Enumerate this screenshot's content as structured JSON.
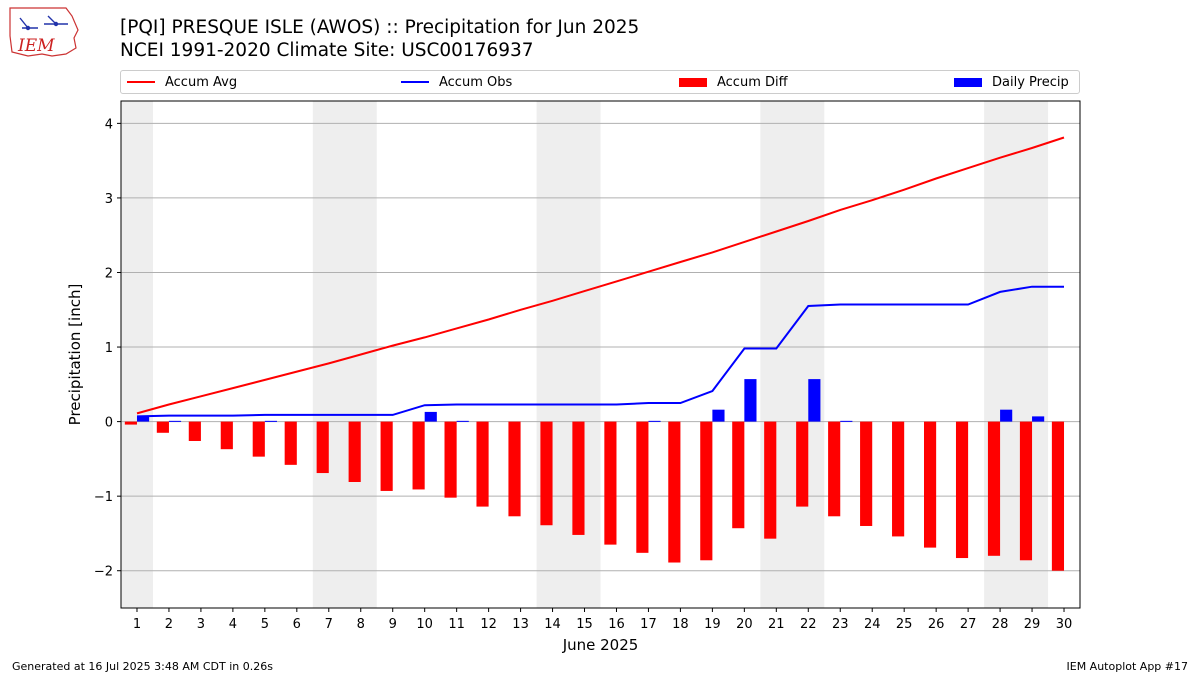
{
  "header": {
    "title_line1": "[PQI] PRESQUE ISLE (AWOS) :: Precipitation for Jun 2025",
    "title_line2": "NCEI 1991-2020 Climate Site: USC00176937"
  },
  "logo": {
    "text": "IEM"
  },
  "footer": {
    "left": "Generated at 16 Jul 2025 3:48 AM CDT in 0.26s",
    "right": "IEM Autoplot App #17"
  },
  "colors": {
    "accum_avg": "#ff0000",
    "accum_obs": "#0000ff",
    "accum_diff": "#ff0000",
    "daily_precip": "#0000ff",
    "weekend_band": "#eeeeee",
    "grid": "#b0b0b0"
  },
  "chart_data": {
    "type": "bar",
    "xlabel": "June 2025",
    "ylabel": "Precipitation [inch]",
    "xlim": [
      0.5,
      30.5
    ],
    "ylim": [
      -2.5,
      4.3
    ],
    "yticks": [
      4,
      3,
      2,
      1,
      0,
      -1,
      -2
    ],
    "ytick_labels": [
      "4",
      "3",
      "2",
      "1",
      "0",
      "−1",
      "−2"
    ],
    "grid": "horizontal",
    "legend_position": "top",
    "weekend_bands": [
      [
        0.5,
        1.5
      ],
      [
        6.5,
        8.5
      ],
      [
        13.5,
        15.5
      ],
      [
        20.5,
        22.5
      ],
      [
        27.5,
        29.5
      ]
    ],
    "days": [
      1,
      2,
      3,
      4,
      5,
      6,
      7,
      8,
      9,
      10,
      11,
      12,
      13,
      14,
      15,
      16,
      17,
      18,
      19,
      20,
      21,
      22,
      23,
      24,
      25,
      26,
      27,
      28,
      29,
      30
    ],
    "series": [
      {
        "name": "Accum Avg",
        "kind": "line",
        "values": [
          0.11,
          0.23,
          0.34,
          0.45,
          0.56,
          0.67,
          0.78,
          0.9,
          1.02,
          1.13,
          1.25,
          1.37,
          1.5,
          1.62,
          1.75,
          1.88,
          2.01,
          2.14,
          2.27,
          2.41,
          2.55,
          2.69,
          2.84,
          2.97,
          3.11,
          3.26,
          3.4,
          3.54,
          3.67,
          3.81
        ]
      },
      {
        "name": "Accum Obs",
        "kind": "line",
        "values": [
          0.07,
          0.08,
          0.08,
          0.08,
          0.09,
          0.09,
          0.09,
          0.09,
          0.09,
          0.22,
          0.23,
          0.23,
          0.23,
          0.23,
          0.23,
          0.23,
          0.25,
          0.25,
          0.41,
          0.98,
          0.98,
          1.55,
          1.57,
          1.57,
          1.57,
          1.57,
          1.57,
          1.74,
          1.81,
          1.81
        ]
      },
      {
        "name": "Accum Diff",
        "kind": "bar",
        "values": [
          -0.04,
          -0.15,
          -0.26,
          -0.37,
          -0.47,
          -0.58,
          -0.69,
          -0.81,
          -0.93,
          -0.91,
          -1.02,
          -1.14,
          -1.27,
          -1.39,
          -1.52,
          -1.65,
          -1.76,
          -1.89,
          -1.86,
          -1.43,
          -1.57,
          -1.14,
          -1.27,
          -1.4,
          -1.54,
          -1.69,
          -1.83,
          -1.8,
          -1.86,
          -2.0
        ]
      },
      {
        "name": "Daily Precip",
        "kind": "bar",
        "values": [
          0.07,
          0.01,
          0.0,
          0.0,
          0.01,
          0.0,
          0.0,
          0.0,
          0.0,
          0.13,
          0.01,
          0.0,
          0.0,
          0.0,
          0.0,
          0.0,
          0.01,
          0.0,
          0.16,
          0.57,
          0.0,
          0.57,
          0.01,
          0.0,
          0.0,
          0.0,
          0.0,
          0.16,
          0.07,
          0.0
        ]
      }
    ]
  }
}
